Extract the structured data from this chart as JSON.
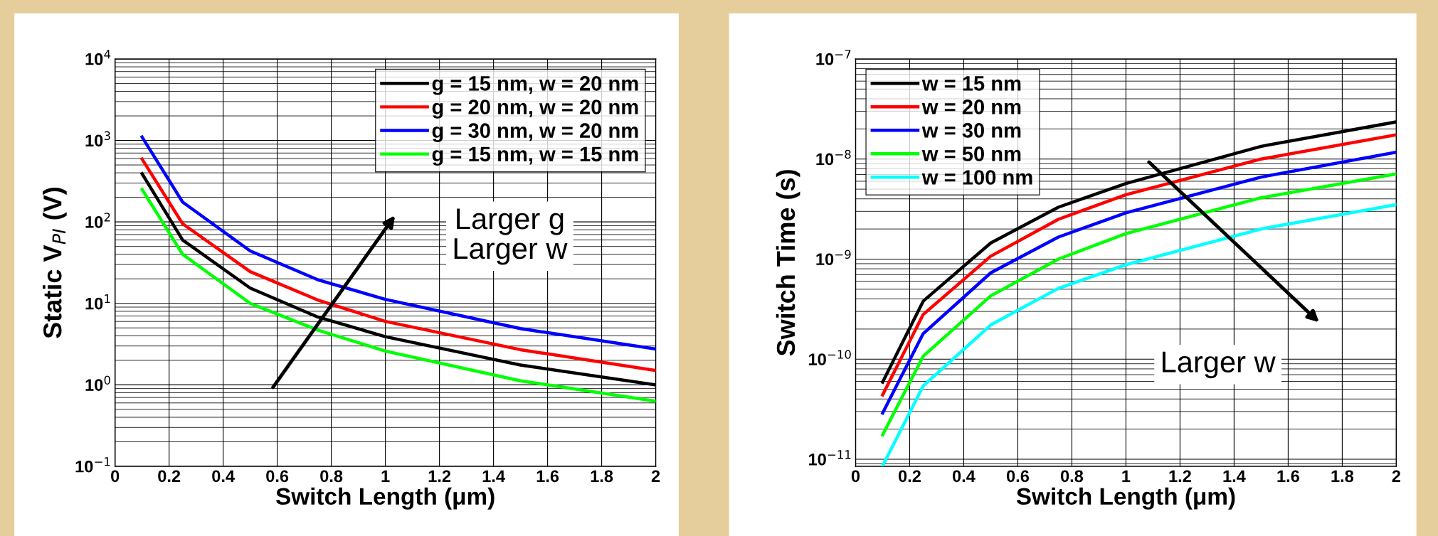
{
  "chart_data": [
    {
      "type": "line",
      "xlabel": "Switch Length (μm)",
      "ylabel": "Static V$_{PI}$ (V)",
      "log": "y",
      "grid": true,
      "legend": "top right",
      "xlim": [
        0,
        2
      ],
      "xticks": [
        0,
        0.2,
        0.4,
        0.6,
        0.8,
        1,
        1.2,
        1.4,
        1.6,
        1.8,
        2
      ],
      "ylim": [
        0.1,
        10000
      ],
      "yticks": [
        {
          "value": 0.1,
          "label": "10$^{−1}$"
        },
        {
          "value": 1,
          "label": "10$^{0}$"
        },
        {
          "value": 10,
          "label": "10$^{1}$"
        },
        {
          "value": 100,
          "label": "10$^{2}$"
        },
        {
          "value": 1000,
          "label": "10$^{3}$"
        },
        {
          "value": 10000,
          "label": "10$^{4}$"
        }
      ],
      "x": [
        0.1,
        0.25,
        0.5,
        0.75,
        1,
        1.5,
        2
      ],
      "series": [
        {
          "name": "g = 15 nm, w = 20 nm",
          "color": "#000000",
          "values": [
            390,
            60,
            15.4,
            6.8,
            3.9,
            1.75,
            1.0
          ]
        },
        {
          "name": "g = 20 nm, w = 20 nm",
          "color": "#ff0000",
          "values": [
            590,
            95,
            24.5,
            11,
            6.0,
            2.7,
            1.5
          ]
        },
        {
          "name": "g = 30 nm, w = 20 nm",
          "color": "#0000ff",
          "values": [
            1100,
            175,
            44,
            19.5,
            11.2,
            4.9,
            2.75
          ]
        },
        {
          "name": "g = 15 nm, w = 15 nm",
          "color": "#00ff00",
          "values": [
            250,
            40,
            10,
            4.7,
            2.6,
            1.12,
            0.63
          ]
        }
      ],
      "annotations": [
        "Larger g\nLarger w"
      ]
    },
    {
      "type": "line",
      "xlabel": "Switch Length (μm)",
      "ylabel": "Switch Time (s)",
      "log": "y",
      "grid": true,
      "legend": "top left",
      "xlim": [
        0,
        2
      ],
      "xticks": [
        0,
        0.2,
        0.4,
        0.6,
        0.8,
        1,
        1.2,
        1.4,
        1.6,
        1.8,
        2
      ],
      "ylim": [
        8.5e-12,
        1e-07
      ],
      "yticks": [
        {
          "value": 1e-11,
          "label": "10$^{−11}$"
        },
        {
          "value": 1e-10,
          "label": "10$^{−10}$"
        },
        {
          "value": 1e-09,
          "label": "10$^{−9}$"
        },
        {
          "value": 1e-08,
          "label": "10$^{−8}$"
        },
        {
          "value": 1e-07,
          "label": "10$^{−7}$"
        }
      ],
      "x": [
        0.1,
        0.25,
        0.5,
        0.75,
        1,
        1.5,
        2
      ],
      "series": [
        {
          "name": "w = 15 nm",
          "color": "#000000",
          "values": [
            5.9e-11,
            3.8e-10,
            1.45e-09,
            3.3e-09,
            5.7e-09,
            1.34e-08,
            2.35e-08
          ]
        },
        {
          "name": "w = 20 nm",
          "color": "#ff0000",
          "values": [
            4.4e-11,
            2.8e-10,
            1.07e-09,
            2.5e-09,
            4.4e-09,
            1e-08,
            1.75e-08
          ]
        },
        {
          "name": "w = 30 nm",
          "color": "#0000ff",
          "values": [
            2.9e-11,
            1.8e-10,
            7.3e-10,
            1.66e-09,
            2.9e-09,
            6.6e-09,
            1.17e-08
          ]
        },
        {
          "name": "w = 50 nm",
          "color": "#00ff00",
          "values": [
            1.75e-11,
            1.07e-10,
            4.3e-10,
            1e-09,
            1.8e-09,
            4.1e-09,
            7.1e-09
          ]
        },
        {
          "name": "w = 100 nm",
          "color": "#00ffff",
          "values": [
            8.6e-12,
            5.4e-11,
            2.2e-10,
            5.1e-10,
            8.8e-10,
            2e-09,
            3.5e-09
          ]
        }
      ],
      "annotations": [
        "Larger w"
      ]
    }
  ]
}
